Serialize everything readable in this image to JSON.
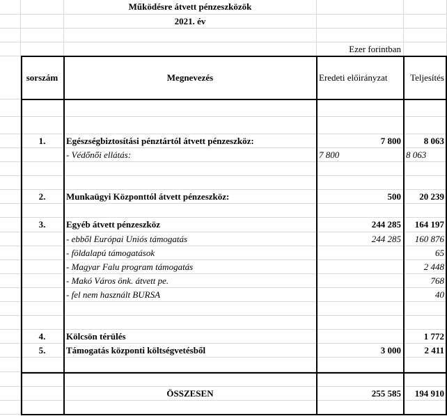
{
  "title": "Működésre átvett pénzeszközök",
  "year": "2021. év",
  "unit": "Ezer forintban",
  "headers": {
    "no": "sorszám",
    "name": "Megnevezés",
    "planned": "Eredeti előirányzat",
    "actual": "Teljesítés"
  },
  "rows": [
    {
      "type": "blank"
    },
    {
      "type": "blank"
    },
    {
      "type": "main",
      "no": "1.",
      "name": "Egészségbiztosítási pénztártól átvett pénzeszköz:",
      "planned": "7 800",
      "actual": "8 063"
    },
    {
      "type": "subleft",
      "no": "",
      "name": " - Védőnői ellátás:",
      "planned": "7 800",
      "actual": "8 063"
    },
    {
      "type": "blank"
    },
    {
      "type": "blank"
    },
    {
      "type": "main",
      "no": "2.",
      "name": "Munkaügyi Központtól átvett pénzeszköz:",
      "planned": "500",
      "actual": "20 239"
    },
    {
      "type": "blank"
    },
    {
      "type": "main",
      "no": "3.",
      "name": "Egyéb átvett pénzeszköz",
      "planned": "244 285",
      "actual": "164 197"
    },
    {
      "type": "sub",
      "no": "",
      "name": " - ebből Európai Uniós támogatás",
      "planned": "244 285",
      "actual": "160 876"
    },
    {
      "type": "sub",
      "no": "",
      "name": " - földalapú támogatások",
      "planned": "",
      "actual": "65"
    },
    {
      "type": "sub",
      "no": "",
      "name": " - Magyar Falu program támogatás",
      "planned": "",
      "actual": "2 448"
    },
    {
      "type": "sub",
      "no": "",
      "name": " - Makó Város önk. átvett pe.",
      "planned": "",
      "actual": "768"
    },
    {
      "type": "sub",
      "no": "",
      "name": " - fel nem használt BURSA",
      "planned": "",
      "actual": "40"
    },
    {
      "type": "blank"
    },
    {
      "type": "blank"
    },
    {
      "type": "main",
      "no": "4.",
      "name": "Kölcsön térülés",
      "planned": "",
      "actual": "1 772"
    },
    {
      "type": "main",
      "no": "5.",
      "name": "Támogatás központi költségvetésből",
      "planned": "3 000",
      "actual": "2 411"
    },
    {
      "type": "blank"
    },
    {
      "type": "blank"
    },
    {
      "type": "total",
      "no": "",
      "name": "ÖSSZESEN",
      "planned": "255 585",
      "actual": "194 910"
    },
    {
      "type": "blank"
    }
  ]
}
